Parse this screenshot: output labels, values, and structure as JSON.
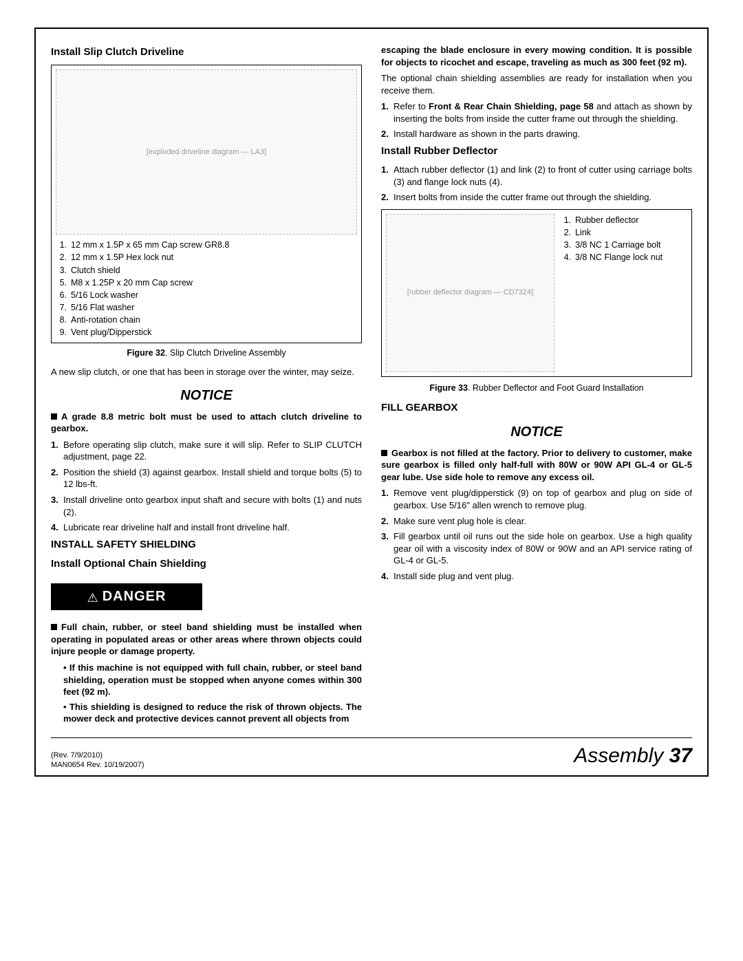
{
  "left": {
    "h1": "Install Slip Clutch Driveline",
    "fig32_label_img": "[exploded driveline diagram — LA3]",
    "parts32": [
      {
        "n": "1.",
        "t": "12 mm x 1.5P x 65 mm Cap screw GR8.8"
      },
      {
        "n": "2.",
        "t": "12 mm x 1.5P Hex lock nut"
      },
      {
        "n": "3.",
        "t": "Clutch shield"
      },
      {
        "n": "5.",
        "t": "M8 x 1.25P x 20 mm Cap screw"
      },
      {
        "n": "6.",
        "t": "5/16 Lock washer"
      },
      {
        "n": "7.",
        "t": "5/16 Flat washer"
      },
      {
        "n": "8.",
        "t": "Anti-rotation chain"
      },
      {
        "n": "9.",
        "t": "Vent plug/Dipperstick"
      }
    ],
    "fig32_cap_b": "Figure 32",
    "fig32_cap_t": ". Slip Clutch Driveline Assembly",
    "p1": "A new slip clutch, or one that has been in storage over the winter, may seize.",
    "notice1": "NOTICE",
    "bullet1": "A grade 8.8 metric bolt must be used to attach clutch driveline to gearbox.",
    "steps1": [
      "Before operating slip clutch, make sure it will slip. Refer to SLIP CLUTCH adjustment, page 22.",
      "Position the shield (3) against gearbox. Install shield and torque bolts (5) to 12 lbs-ft.",
      "Install driveline onto gearbox input shaft and secure with bolts (1) and nuts (2).",
      "Lubricate rear driveline half and install front driveline half."
    ],
    "h2": "INSTALL SAFETY SHIELDING",
    "h3": "Install Optional Chain Shielding",
    "danger": "DANGER",
    "bullet2": "Full chain, rubber, or steel band shielding must be installed when operating in populated areas or other areas where thrown objects could injure people or damage property.",
    "dots": [
      "If this machine is not equipped with full chain, rubber, or steel band shielding, operation must be stopped when anyone comes within 300 feet (92 m).",
      "This shielding is designed to reduce the risk of thrown objects. The mower deck and protective devices cannot prevent all objects from"
    ]
  },
  "right": {
    "cont": "escaping the blade enclosure in every mowing condition. It is possible for objects to ricochet and escape, traveling as much as 300 feet (92 m).",
    "p1": "The optional chain shielding assemblies are ready for installation when you receive them.",
    "steps1": [
      {
        "pre": "Refer to ",
        "b": "Front & Rear Chain Shielding, page 58",
        "post": " and attach as shown by inserting the bolts from inside the cutter frame out through the shielding."
      },
      {
        "pre": "Install hardware as shown in the parts drawing.",
        "b": "",
        "post": ""
      }
    ],
    "h1": "Install Rubber Deflector",
    "steps2": [
      "Attach rubber deflector (1) and link (2) to front of cutter using carriage bolts (3) and flange lock nuts (4).",
      "Insert bolts from inside the cutter frame out through the shielding."
    ],
    "fig33_img": "[rubber deflector diagram — CD7324]",
    "parts33": [
      {
        "n": "1.",
        "t": "Rubber deflector"
      },
      {
        "n": "2.",
        "t": "Link"
      },
      {
        "n": "3.",
        "t": "3/8 NC 1 Carriage bolt"
      },
      {
        "n": "4.",
        "t": "3/8 NC Flange lock nut"
      }
    ],
    "fig33_cap_b": "Figure 33",
    "fig33_cap_t": ". Rubber Deflector and Foot Guard Installation",
    "h2": "FILL GEARBOX",
    "notice2": "NOTICE",
    "bullet3": "Gearbox is not filled at the factory. Prior to delivery to customer, make sure gearbox is filled only half-full with 80W or 90W API GL-4 or GL-5 gear lube. Use side hole to remove any excess oil.",
    "steps3": [
      "Remove vent plug/dipperstick (9) on top of gearbox and plug on side of gearbox. Use 5/16\" allen wrench to remove plug.",
      "Make sure vent plug hole is clear.",
      "Fill gearbox until oil runs out the side hole on gearbox. Use a high quality gear oil with a viscosity index of 80W or 90W and an API service rating of GL-4 or GL-5.",
      "Install side plug and vent plug."
    ]
  },
  "footer": {
    "rev1": "(Rev. 7/9/2010)",
    "rev2": "MAN0654 Rev. 10/19/2007)",
    "section": "Assembly",
    "page": "37"
  },
  "colors": {
    "text": "#000000",
    "bg": "#ffffff",
    "border": "#000000"
  }
}
